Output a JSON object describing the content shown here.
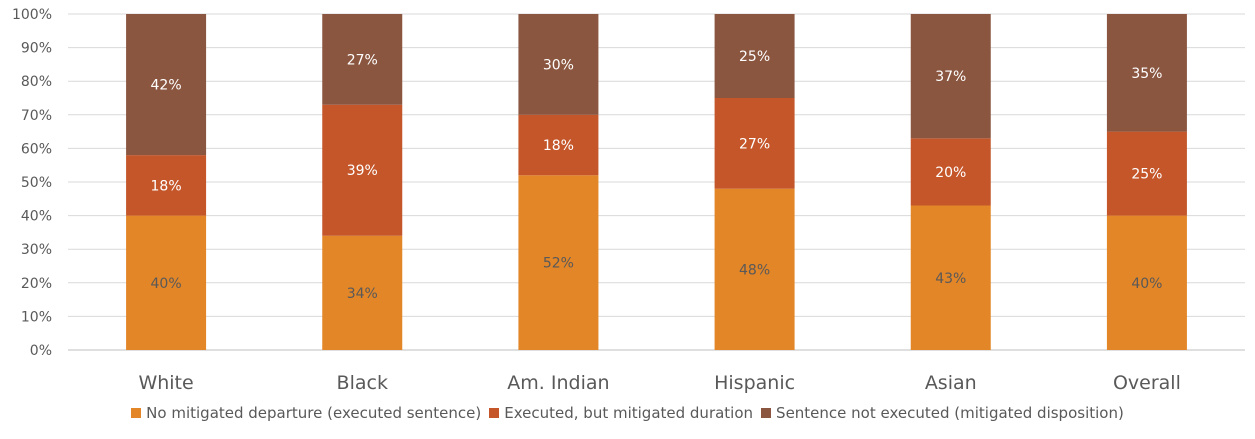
{
  "chart_data": {
    "type": "bar",
    "stacked": true,
    "categories": [
      "White",
      "Black",
      "Am. Indian",
      "Hispanic",
      "Asian",
      "Overall"
    ],
    "series": [
      {
        "name": "No mitigated departure (executed sentence)",
        "values": [
          40,
          34,
          52,
          48,
          43,
          40
        ],
        "labels": [
          "40%",
          "34%",
          "52%",
          "48%",
          "43%",
          "40%"
        ],
        "color": "#E38627"
      },
      {
        "name": "Executed, but mitigated duration",
        "values": [
          18,
          39,
          18,
          27,
          20,
          25
        ],
        "labels": [
          "18%",
          "39%",
          "18%",
          "27%",
          "20%",
          "25%"
        ],
        "color": "#C4562A"
      },
      {
        "name": "Sentence not executed (mitigated disposition)",
        "values": [
          42,
          27,
          30,
          25,
          37,
          35
        ],
        "labels": [
          "42%",
          "27%",
          "30%",
          "25%",
          "37%",
          "35%"
        ],
        "color": "#8B5640"
      }
    ],
    "yticks": [
      "0%",
      "10%",
      "20%",
      "30%",
      "40%",
      "50%",
      "60%",
      "70%",
      "80%",
      "90%",
      "100%"
    ],
    "ylim": [
      0,
      100
    ],
    "grid": true,
    "legend_position": "bottom",
    "title": "",
    "xlabel": "",
    "ylabel": ""
  }
}
